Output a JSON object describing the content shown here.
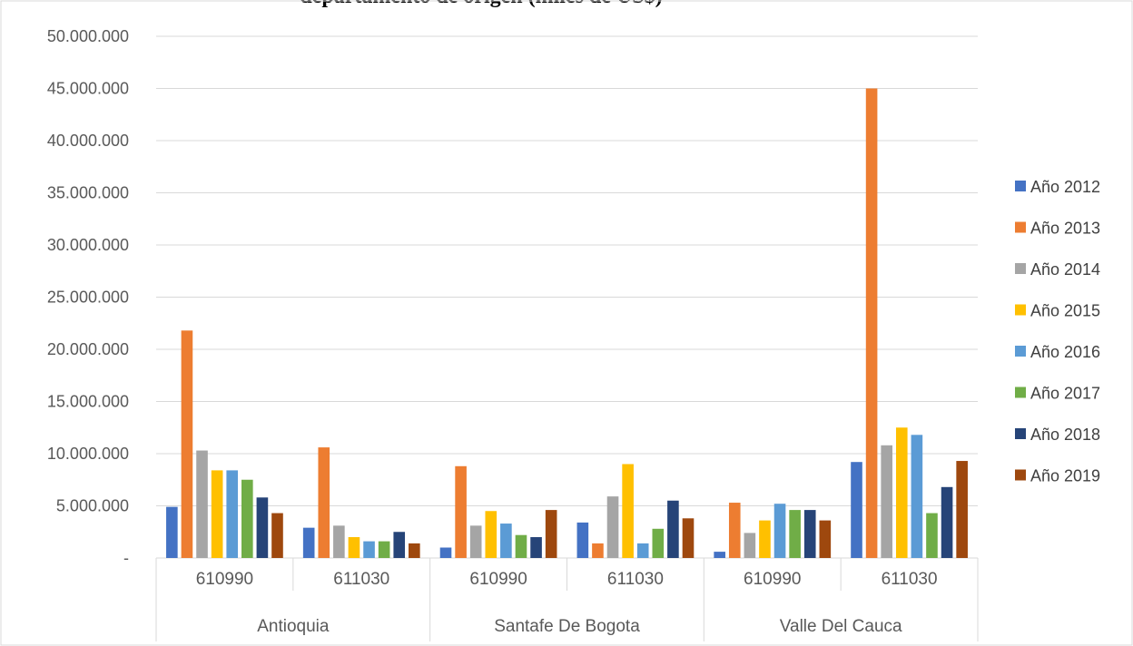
{
  "chart_data": {
    "type": "bar",
    "title": "departamento de origen (miles de US$)",
    "groups": [
      {
        "name": "Antioquia",
        "categories": [
          "610990",
          "611030"
        ]
      },
      {
        "name": "Santafe De Bogota",
        "categories": [
          "610990",
          "611030"
        ]
      },
      {
        "name": "Valle Del Cauca",
        "categories": [
          "610990",
          "611030"
        ]
      }
    ],
    "y_ticks": [
      "-",
      "5.000.000",
      "10.000.000",
      "15.000.000",
      "20.000.000",
      "25.000.000",
      "30.000.000",
      "35.000.000",
      "40.000.000",
      "45.000.000",
      "50.000.000"
    ],
    "ylim": [
      0,
      50000000
    ],
    "grid": true,
    "legend_position": "right",
    "series": [
      {
        "name": "Año 2012",
        "color": "#4472C4",
        "values": [
          4900000,
          2900000,
          1000000,
          3400000,
          600000,
          9200000
        ]
      },
      {
        "name": "Año 2013",
        "color": "#ED7D31",
        "values": [
          21800000,
          10600000,
          8800000,
          1400000,
          5300000,
          45000000
        ]
      },
      {
        "name": "Año 2014",
        "color": "#A5A5A5",
        "values": [
          10300000,
          3100000,
          3100000,
          5900000,
          2400000,
          10800000
        ]
      },
      {
        "name": "Año 2015",
        "color": "#FFC000",
        "values": [
          8400000,
          2000000,
          4500000,
          9000000,
          3600000,
          12500000
        ]
      },
      {
        "name": "Año 2016",
        "color": "#5B9BD5",
        "values": [
          8400000,
          1600000,
          3300000,
          1400000,
          5200000,
          11800000
        ]
      },
      {
        "name": "Año 2017",
        "color": "#70AD47",
        "values": [
          7500000,
          1600000,
          2200000,
          2800000,
          4600000,
          4300000
        ]
      },
      {
        "name": "Año 2018",
        "color": "#264478",
        "values": [
          5800000,
          2500000,
          2000000,
          5500000,
          4600000,
          6800000
        ]
      },
      {
        "name": "Año 2019",
        "color": "#9E480E",
        "values": [
          4300000,
          1400000,
          4600000,
          3800000,
          3600000,
          9300000
        ]
      }
    ]
  }
}
